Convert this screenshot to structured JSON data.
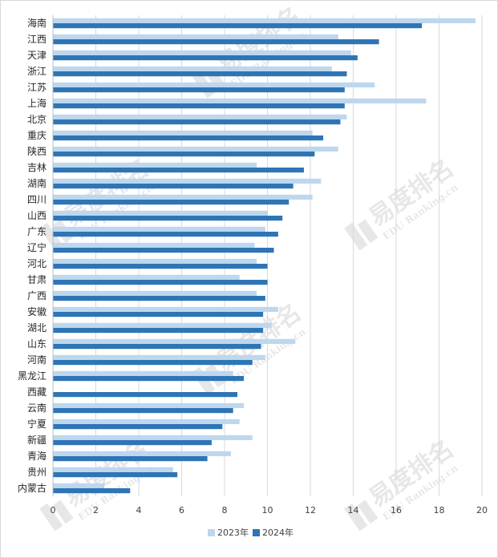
{
  "chart_data": {
    "type": "bar",
    "orientation": "horizontal",
    "categories": [
      "海南",
      "江西",
      "天津",
      "浙江",
      "江苏",
      "上海",
      "北京",
      "重庆",
      "陕西",
      "吉林",
      "湖南",
      "四川",
      "山西",
      "广东",
      "辽宁",
      "河北",
      "甘肃",
      "广西",
      "安徽",
      "湖北",
      "山东",
      "河南",
      "黑龙江",
      "西藏",
      "云南",
      "宁夏",
      "新疆",
      "青海",
      "贵州",
      "内蒙古"
    ],
    "series": [
      {
        "name": "2023年",
        "color": "#bdd7ee",
        "values": [
          19.7,
          13.3,
          13.9,
          13.0,
          15.0,
          17.4,
          13.7,
          12.1,
          13.3,
          9.5,
          12.5,
          12.1,
          10.0,
          9.9,
          9.4,
          9.5,
          8.7,
          9.5,
          10.5,
          10.2,
          11.3,
          9.9,
          8.4,
          null,
          8.9,
          8.7,
          9.3,
          8.3,
          5.6,
          2.4
        ]
      },
      {
        "name": "2024年",
        "color": "#2e75b6",
        "values": [
          17.2,
          15.2,
          14.2,
          13.7,
          13.6,
          13.6,
          13.4,
          12.6,
          12.2,
          11.7,
          11.2,
          11.0,
          10.7,
          10.5,
          10.3,
          10.0,
          10.0,
          9.9,
          9.8,
          9.8,
          9.7,
          9.3,
          8.9,
          8.6,
          8.4,
          7.9,
          7.4,
          7.2,
          5.8,
          3.6
        ]
      }
    ],
    "xlim": [
      0,
      20
    ],
    "xticks": [
      0,
      2,
      4,
      6,
      8,
      10,
      12,
      14,
      16,
      18,
      20
    ],
    "grid": true,
    "legend_position": "bottom-center",
    "title": "",
    "xlabel": "",
    "ylabel": ""
  },
  "watermark": "易度排名 EDU Ranking.cn"
}
